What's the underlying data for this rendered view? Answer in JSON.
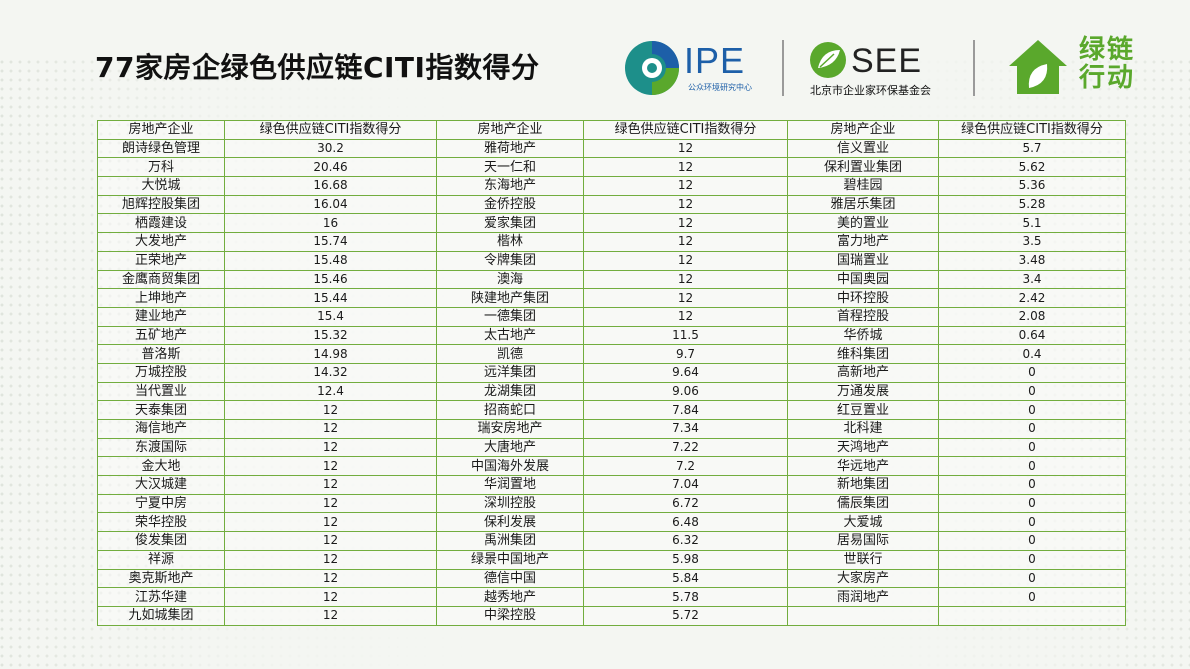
{
  "title": "77家房企绿色供应链CITI指数得分",
  "logos": {
    "ipe": {
      "name": "IPE",
      "subtitle": "公众环境研究中心"
    },
    "see": {
      "name": "SEE",
      "subtitle": "北京市企业家环保基金会"
    },
    "green_chain": {
      "line1": "绿链",
      "line2": "行动"
    }
  },
  "colors": {
    "border": "#72ad3e",
    "brand_green": "#5aa82c",
    "ipe_blue": "#1d5fa8"
  },
  "table": {
    "headers": [
      "房地产企业",
      "绿色供应链CITI指数得分",
      "房地产企业",
      "绿色供应链CITI指数得分",
      "房地产企业",
      "绿色供应链CITI指数得分"
    ],
    "rows": [
      [
        "朗诗绿色管理",
        "30.2",
        "雅荷地产",
        "12",
        "信义置业",
        "5.7"
      ],
      [
        "万科",
        "20.46",
        "天一仁和",
        "12",
        "保利置业集团",
        "5.62"
      ],
      [
        "大悦城",
        "16.68",
        "东海地产",
        "12",
        "碧桂园",
        "5.36"
      ],
      [
        "旭辉控股集团",
        "16.04",
        "金侨控股",
        "12",
        "雅居乐集团",
        "5.28"
      ],
      [
        "栖霞建设",
        "16",
        "爱家集团",
        "12",
        "美的置业",
        "5.1"
      ],
      [
        "大发地产",
        "15.74",
        "楷林",
        "12",
        "富力地产",
        "3.5"
      ],
      [
        "正荣地产",
        "15.48",
        "令牌集团",
        "12",
        "国瑞置业",
        "3.48"
      ],
      [
        "金鹰商贸集团",
        "15.46",
        "澳海",
        "12",
        "中国奥园",
        "3.4"
      ],
      [
        "上坤地产",
        "15.44",
        "陕建地产集团",
        "12",
        "中环控股",
        "2.42"
      ],
      [
        "建业地产",
        "15.4",
        "一德集团",
        "12",
        "首程控股",
        "2.08"
      ],
      [
        "五矿地产",
        "15.32",
        "太古地产",
        "11.5",
        "华侨城",
        "0.64"
      ],
      [
        "普洛斯",
        "14.98",
        "凯德",
        "9.7",
        "维科集团",
        "0.4"
      ],
      [
        "万城控股",
        "14.32",
        "远洋集团",
        "9.64",
        "高新地产",
        "0"
      ],
      [
        "当代置业",
        "12.4",
        "龙湖集团",
        "9.06",
        "万通发展",
        "0"
      ],
      [
        "天泰集团",
        "12",
        "招商蛇口",
        "7.84",
        "红豆置业",
        "0"
      ],
      [
        "海信地产",
        "12",
        "瑞安房地产",
        "7.34",
        "北科建",
        "0"
      ],
      [
        "东渡国际",
        "12",
        "大唐地产",
        "7.22",
        "天鸿地产",
        "0"
      ],
      [
        "金大地",
        "12",
        "中国海外发展",
        "7.2",
        "华远地产",
        "0"
      ],
      [
        "大汉城建",
        "12",
        "华润置地",
        "7.04",
        "新地集团",
        "0"
      ],
      [
        "宁夏中房",
        "12",
        "深圳控股",
        "6.72",
        "儒辰集团",
        "0"
      ],
      [
        "荣华控股",
        "12",
        "保利发展",
        "6.48",
        "大爱城",
        "0"
      ],
      [
        "俊发集团",
        "12",
        "禹洲集团",
        "6.32",
        "居易国际",
        "0"
      ],
      [
        "祥源",
        "12",
        "绿景中国地产",
        "5.98",
        "世联行",
        "0"
      ],
      [
        "奥克斯地产",
        "12",
        "德信中国",
        "5.84",
        "大家房产",
        "0"
      ],
      [
        "江苏华建",
        "12",
        "越秀地产",
        "5.78",
        "雨润地产",
        "0"
      ],
      [
        "九如城集团",
        "12",
        "中梁控股",
        "5.72",
        "",
        ""
      ]
    ]
  }
}
